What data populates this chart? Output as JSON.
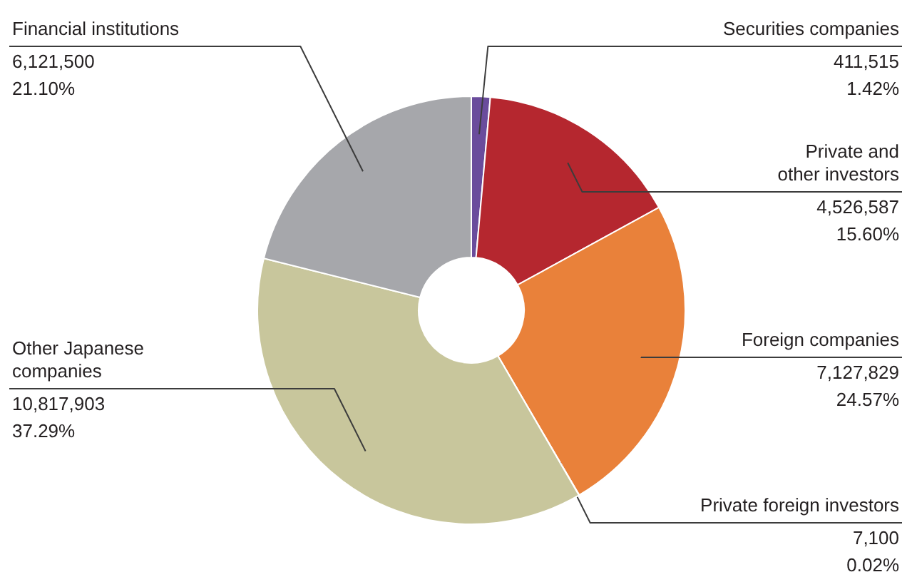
{
  "chart_data": {
    "type": "donut",
    "categories": [
      "Securities companies",
      "Private and other investors",
      "Foreign companies",
      "Private foreign investors",
      "Other Japanese companies",
      "Financial institutions"
    ],
    "values": [
      411515,
      4526587,
      7127829,
      7100,
      10817903,
      6121500
    ],
    "value_labels": [
      "411,515\n1.42%",
      "4,526,587\n15.60%",
      "7,127,829\n24.57%",
      "7,100\n0.02%",
      "10,817,903\n37.29%",
      "6,121,500\n21.10%"
    ],
    "colors": [
      "#6a4c9c",
      "#b5272f",
      "#e9813a",
      "#f2b27a",
      "#c8c69c",
      "#a6a7ab"
    ]
  }
}
